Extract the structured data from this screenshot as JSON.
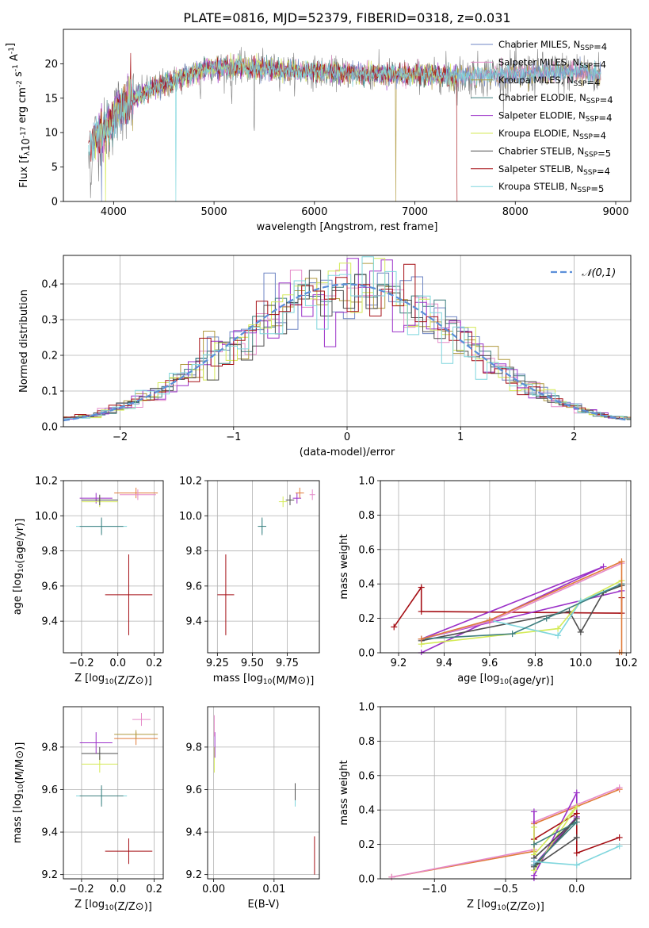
{
  "figure": {
    "title": "PLATE=0816, MJD=52379, FIBERID=0318, z=0.031"
  },
  "colors": {
    "Chabrier MILES": "#6f86c4",
    "Salpeter MILES": "#e58ac9",
    "Kroupa MILES": "#b09a3f",
    "Chabrier ELODIE": "#3f7f7f",
    "Salpeter ELODIE": "#9b30c8",
    "Kroupa ELODIE": "#d4ea57",
    "Chabrier STELIB": "#4d4d4d",
    "Salpeter STELIB": "#a50f15",
    "Kroupa STELIB": "#7fd6dd",
    "orange": "#e07b39",
    "gaussian": "#5b8fd9"
  },
  "chart_data": [
    {
      "id": "spectrum",
      "type": "line",
      "xlabel": "wavelength [Angstrom, rest frame]",
      "ylabel": "Flux [f_λ 10^-17 erg cm^-2 s^-1 A^-1]",
      "xlim": [
        3500,
        9150
      ],
      "ylim": [
        0,
        25
      ],
      "xticks": [
        4000,
        5000,
        6000,
        7000,
        8000,
        9000
      ],
      "yticks": [
        0,
        5,
        10,
        15,
        20
      ],
      "legend_position": "upper right",
      "legend": [
        "Chabrier MILES, N_SSP=4",
        "Salpeter MILES, N_SSP=4",
        "Kroupa MILES, N_SSP=4",
        "Chabrier ELODIE, N_SSP=4",
        "Salpeter ELODIE, N_SSP=4",
        "Kroupa ELODIE, N_SSP=4",
        "Chabrier STELIB, N_SSP=5",
        "Salpeter STELIB, N_SSP=4",
        "Kroupa STELIB, N_SSP=5"
      ],
      "continuum": [
        [
          3750,
          8
        ],
        [
          3800,
          9
        ],
        [
          3850,
          9.5
        ],
        [
          3900,
          10
        ],
        [
          3950,
          10.5
        ],
        [
          4000,
          12
        ],
        [
          4050,
          13.5
        ],
        [
          4100,
          14
        ],
        [
          4200,
          15
        ],
        [
          4300,
          15.8
        ],
        [
          4400,
          16.5
        ],
        [
          4500,
          17
        ],
        [
          4600,
          17.5
        ],
        [
          4700,
          18.2
        ],
        [
          4800,
          18.8
        ],
        [
          4900,
          19.2
        ],
        [
          5000,
          19.5
        ],
        [
          5200,
          19.5
        ],
        [
          5400,
          19.3
        ],
        [
          5600,
          19.2
        ],
        [
          5800,
          19.0
        ],
        [
          6000,
          18.8
        ],
        [
          6200,
          18.7
        ],
        [
          6400,
          18.7
        ],
        [
          6600,
          18.5
        ],
        [
          6800,
          18.5
        ],
        [
          7000,
          18.4
        ],
        [
          7200,
          18.3
        ],
        [
          7400,
          18.2
        ],
        [
          7600,
          18.3
        ],
        [
          7800,
          18.4
        ],
        [
          8000,
          18.5
        ],
        [
          8200,
          18.6
        ],
        [
          8400,
          18.7
        ],
        [
          8600,
          18.8
        ],
        [
          8800,
          18.5
        ],
        [
          8850,
          18.5
        ]
      ]
    },
    {
      "id": "residuals",
      "type": "line",
      "xlabel": "(data-model)/error",
      "ylabel": "Normed distribution",
      "xlim": [
        -2.5,
        2.5
      ],
      "ylim": [
        0,
        0.48
      ],
      "xticks": [
        -2,
        -1,
        0,
        1,
        2
      ],
      "yticks": [
        0.0,
        0.1,
        0.2,
        0.3,
        0.4
      ],
      "grid": true,
      "legend_position": "upper right",
      "gaussian_label": "𝒩(0,1)"
    },
    {
      "id": "age_vs_Z",
      "type": "scatter",
      "xlabel": "Z [log10(Z/Z⊙)]",
      "ylabel": "age [log10(age/yr)]",
      "xlim": [
        -0.3,
        0.25
      ],
      "ylim": [
        9.22,
        10.2
      ],
      "xticks": [
        -0.2,
        0.0,
        0.2
      ],
      "yticks": [
        9.4,
        9.6,
        9.8,
        10.0,
        10.2
      ],
      "grid": true,
      "points": [
        {
          "model": "Salpeter STELIB",
          "x": 0.06,
          "y": 9.55,
          "xerr": 0.13,
          "yerr": 0.23
        },
        {
          "model": "Kroupa STELIB",
          "x": -0.09,
          "y": 9.94,
          "xerr": 0.14,
          "yerr": 0.04
        },
        {
          "model": "Chabrier ELODIE",
          "x": -0.09,
          "y": 9.94,
          "xerr": 0.12,
          "yerr": 0.05
        },
        {
          "model": "Salpeter ELODIE",
          "x": -0.12,
          "y": 10.1,
          "xerr": 0.09,
          "yerr": 0.03
        },
        {
          "model": "Kroupa ELODIE",
          "x": -0.1,
          "y": 10.08,
          "xerr": 0.1,
          "yerr": 0.03
        },
        {
          "model": "Chabrier STELIB",
          "x": -0.1,
          "y": 10.09,
          "xerr": 0.1,
          "yerr": 0.03
        },
        {
          "model": "orange",
          "x": 0.1,
          "y": 10.13,
          "xerr": 0.12,
          "yerr": 0.03
        },
        {
          "model": "Salpeter MILES",
          "x": 0.11,
          "y": 10.12,
          "xerr": 0.1,
          "yerr": 0.03
        }
      ]
    },
    {
      "id": "age_vs_mass",
      "type": "scatter",
      "xlabel": "mass [log10(M/M⊙)]",
      "ylabel": "",
      "xlim": [
        9.18,
        9.98
      ],
      "ylim": [
        9.22,
        10.2
      ],
      "xticks": [
        9.25,
        9.5,
        9.75
      ],
      "yticks": [
        9.4,
        9.6,
        9.8,
        10.0,
        10.2
      ],
      "grid": true,
      "points": [
        {
          "model": "Salpeter STELIB",
          "x": 9.31,
          "y": 9.55,
          "xerr": 0.06,
          "yerr": 0.23
        },
        {
          "model": "Kroupa STELIB",
          "x": 9.57,
          "y": 9.94,
          "xerr": 0.03,
          "yerr": 0.04
        },
        {
          "model": "Chabrier ELODIE",
          "x": 9.57,
          "y": 9.94,
          "xerr": 0.03,
          "yerr": 0.05
        },
        {
          "model": "Kroupa ELODIE",
          "x": 9.72,
          "y": 10.08,
          "xerr": 0.03,
          "yerr": 0.03
        },
        {
          "model": "Salpeter ELODIE",
          "x": 9.82,
          "y": 10.1,
          "xerr": 0.03,
          "yerr": 0.03
        },
        {
          "model": "Chabrier STELIB",
          "x": 9.77,
          "y": 10.09,
          "xerr": 0.03,
          "yerr": 0.03
        },
        {
          "model": "orange",
          "x": 9.84,
          "y": 10.13,
          "xerr": 0.03,
          "yerr": 0.03
        },
        {
          "model": "Salpeter MILES",
          "x": 9.93,
          "y": 10.12,
          "xerr": 0.02,
          "yerr": 0.03
        }
      ]
    },
    {
      "id": "mass_weight_vs_age",
      "type": "line",
      "xlabel": "age [log10(age/yr)]",
      "ylabel": "mass weight",
      "xlim": [
        9.12,
        10.22
      ],
      "ylim": [
        0,
        1
      ],
      "xticks": [
        9.2,
        9.4,
        9.6,
        9.8,
        10.0,
        10.2
      ],
      "yticks": [
        0.0,
        0.2,
        0.4,
        0.6,
        0.8,
        1.0
      ],
      "grid": true,
      "series": [
        {
          "model": "Salpeter STELIB",
          "x": [
            9.18,
            9.3,
            9.3,
            10.18,
            10.18
          ],
          "y": [
            0.15,
            0.38,
            0.24,
            0.23,
            0.32
          ]
        },
        {
          "model": "Salpeter ELODIE",
          "x": [
            9.3,
            10.1,
            9.3,
            10.18
          ],
          "y": [
            0.0,
            0.5,
            0.08,
            0.36
          ]
        },
        {
          "model": "Chabrier STELIB",
          "x": [
            9.3,
            9.95,
            10.0,
            10.1,
            10.18
          ],
          "y": [
            0.07,
            0.24,
            0.12,
            0.35,
            0.39
          ]
        },
        {
          "model": "Kroupa ELODIE",
          "x": [
            9.3,
            9.9,
            10.0,
            10.18
          ],
          "y": [
            0.05,
            0.14,
            0.3,
            0.42
          ]
        },
        {
          "model": "Kroupa STELIB",
          "x": [
            9.3,
            9.6,
            9.9,
            10.0,
            10.18
          ],
          "y": [
            0.08,
            0.19,
            0.1,
            0.3,
            0.4
          ]
        },
        {
          "model": "Chabrier ELODIE",
          "x": [
            9.3,
            9.7,
            9.85,
            10.18
          ],
          "y": [
            0.08,
            0.11,
            0.2,
            0.4
          ]
        },
        {
          "model": "Salpeter MILES",
          "x": [
            9.3,
            9.6,
            10.18
          ],
          "y": [
            0.08,
            0.18,
            0.52
          ]
        },
        {
          "model": "orange",
          "x": [
            9.3,
            9.6,
            10.18,
            10.18,
            10.17
          ],
          "y": [
            0.08,
            0.19,
            0.53,
            0.0,
            0.0
          ]
        }
      ]
    },
    {
      "id": "mass_vs_Z",
      "type": "scatter",
      "xlabel": "Z [log10(Z/Z⊙)]",
      "ylabel": "mass [log10(M/M⊙)]",
      "xlim": [
        -0.3,
        0.25
      ],
      "ylim": [
        9.18,
        9.99
      ],
      "xticks": [
        -0.2,
        0.0,
        0.2
      ],
      "yticks": [
        9.2,
        9.4,
        9.6,
        9.8
      ],
      "grid": true,
      "points": [
        {
          "model": "Salpeter STELIB",
          "x": 0.06,
          "y": 9.31,
          "xerr": 0.13,
          "yerr": 0.06
        },
        {
          "model": "Kroupa STELIB",
          "x": -0.09,
          "y": 9.57,
          "xerr": 0.14,
          "yerr": 0.04
        },
        {
          "model": "Chabrier ELODIE",
          "x": -0.09,
          "y": 9.57,
          "xerr": 0.12,
          "yerr": 0.05
        },
        {
          "model": "Kroupa ELODIE",
          "x": -0.1,
          "y": 9.72,
          "xerr": 0.1,
          "yerr": 0.04
        },
        {
          "model": "Chabrier STELIB",
          "x": -0.1,
          "y": 9.77,
          "xerr": 0.1,
          "yerr": 0.03
        },
        {
          "model": "Salpeter ELODIE",
          "x": -0.12,
          "y": 9.82,
          "xerr": 0.09,
          "yerr": 0.05
        },
        {
          "model": "orange",
          "x": 0.1,
          "y": 9.84,
          "xerr": 0.12,
          "yerr": 0.03
        },
        {
          "model": "Kroupa MILES",
          "x": 0.1,
          "y": 9.86,
          "xerr": 0.12,
          "yerr": 0.02
        },
        {
          "model": "Salpeter MILES",
          "x": 0.13,
          "y": 9.93,
          "xerr": 0.05,
          "yerr": 0.03
        }
      ]
    },
    {
      "id": "mass_vs_ebv",
      "type": "scatter",
      "xlabel": "E(B-V)",
      "ylabel": "",
      "xlim": [
        -0.001,
        0.0175
      ],
      "ylim": [
        9.18,
        9.99
      ],
      "xticks": [
        0.0,
        0.01
      ],
      "yticks": [
        9.2,
        9.4,
        9.6,
        9.8
      ],
      "grid": true,
      "points": [
        {
          "model": "Salpeter STELIB",
          "x": 0.0167,
          "y": 9.29,
          "xerr": 0,
          "yerr": 0.09
        },
        {
          "model": "Kroupa STELIB",
          "x": 0.0135,
          "y": 9.57,
          "xerr": 0,
          "yerr": 0.05
        },
        {
          "model": "Chabrier STELIB",
          "x": 0.0135,
          "y": 9.59,
          "xerr": 0,
          "yerr": 0.04
        },
        {
          "model": "Kroupa ELODIE",
          "x": 0.0001,
          "y": 9.74,
          "xerr": 0,
          "yerr": 0.06
        },
        {
          "model": "Salpeter ELODIE",
          "x": 0.0002,
          "y": 9.81,
          "xerr": 0,
          "yerr": 0.06
        },
        {
          "model": "Salpeter MILES",
          "x": 0.0001,
          "y": 9.9,
          "xerr": 0,
          "yerr": 0.05
        }
      ]
    },
    {
      "id": "mass_weight_vs_Z",
      "type": "line",
      "xlabel": "Z [log10(Z/Z⊙)]",
      "ylabel": "mass weight",
      "xlim": [
        -1.38,
        0.38
      ],
      "ylim": [
        0,
        1
      ],
      "xticks": [
        -1.0,
        -0.5,
        0.0
      ],
      "yticks": [
        0.0,
        0.2,
        0.4,
        0.6,
        0.8,
        1.0
      ],
      "grid": true,
      "series": [
        {
          "model": "orange",
          "x": [
            -1.3,
            -0.3,
            -0.3,
            0.3
          ],
          "y": [
            0.01,
            0.16,
            0.32,
            0.52
          ]
        },
        {
          "model": "Salpeter MILES",
          "x": [
            -1.3,
            -0.3,
            -0.3,
            0.3
          ],
          "y": [
            0.01,
            0.17,
            0.33,
            0.53
          ]
        },
        {
          "model": "Salpeter ELODIE",
          "x": [
            -0.3,
            -0.3,
            0.0,
            0.0,
            -0.3,
            -0.3
          ],
          "y": [
            0.0,
            0.02,
            0.5,
            0.36,
            0.08,
            0.39
          ]
        },
        {
          "model": "Salpeter STELIB",
          "x": [
            -0.3,
            0.0,
            0.0,
            0.3
          ],
          "y": [
            0.23,
            0.38,
            0.15,
            0.24
          ]
        },
        {
          "model": "Kroupa ELODIE",
          "x": [
            -0.3,
            0.0,
            -0.3,
            -0.3
          ],
          "y": [
            0.05,
            0.42,
            0.14,
            0.3
          ]
        },
        {
          "model": "Chabrier STELIB",
          "x": [
            -0.3,
            0.0,
            -0.3,
            0.0
          ],
          "y": [
            0.12,
            0.35,
            0.07,
            0.24
          ]
        },
        {
          "model": "Chabrier ELODIE",
          "x": [
            -0.3,
            0.0,
            -0.3
          ],
          "y": [
            0.2,
            0.33,
            0.08
          ]
        },
        {
          "model": "Kroupa STELIB",
          "x": [
            -0.3,
            0.0,
            0.3
          ],
          "y": [
            0.1,
            0.08,
            0.19
          ]
        }
      ]
    }
  ]
}
